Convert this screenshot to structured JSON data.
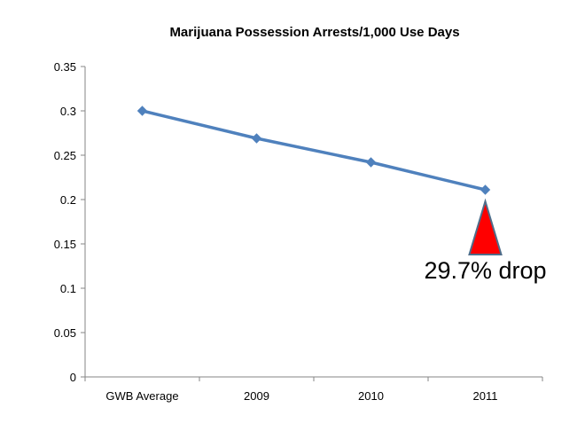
{
  "chart_data": {
    "type": "line",
    "title": "Marijuana Possession Arrests/1,000 Use Days",
    "xlabel": "",
    "ylabel": "",
    "categories": [
      "GWB Average",
      "2009",
      "2010",
      "2011"
    ],
    "series": [
      {
        "values": [
          0.3,
          0.269,
          0.242,
          0.211
        ],
        "color": "#4f81bd"
      }
    ],
    "ylim": [
      0,
      0.35
    ],
    "yticks": [
      "0",
      "0.05",
      "0.1",
      "0.15",
      "0.2",
      "0.25",
      "0.3",
      "0.35"
    ],
    "yticks_values": [
      0,
      0.05,
      0.1,
      0.15,
      0.2,
      0.25,
      0.3,
      0.35
    ],
    "grid": false,
    "legend": "none",
    "annotation": {
      "text": "29.7% drop",
      "category": "2011",
      "marker": "red-triangle",
      "marker_color": "#ff0000",
      "marker_outline": "#4f6d8a"
    },
    "axis_color": "#868686"
  }
}
